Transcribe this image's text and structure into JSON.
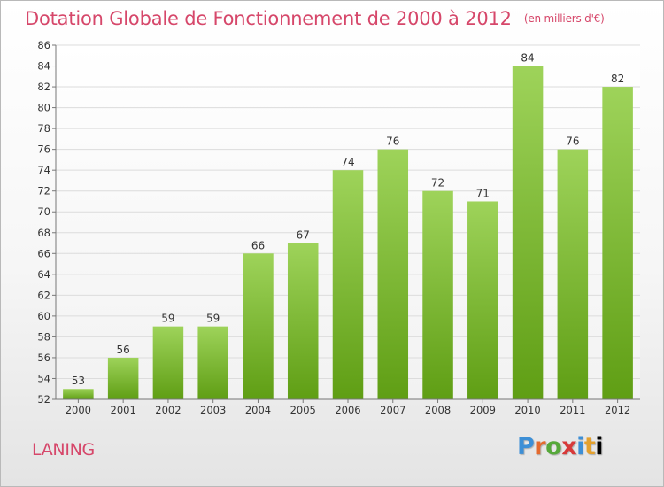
{
  "header": {
    "title": "Dotation Globale de Fonctionnement de 2000 à 2012",
    "unit": "(en milliers d'€)"
  },
  "footer": {
    "commune": "LANING",
    "logo_text": "Proxiti"
  },
  "colors": {
    "title": "#d6476a",
    "bar_top": "#9ed35a",
    "bar_bottom": "#5f9e14",
    "grid": "#dcdcdc",
    "axis": "#777777"
  },
  "chart_data": {
    "type": "bar",
    "title": "Dotation Globale de Fonctionnement de 2000 à 2012",
    "subtitle": "(en milliers d'€)",
    "xlabel": "",
    "ylabel": "",
    "categories": [
      "2000",
      "2001",
      "2002",
      "2003",
      "2004",
      "2005",
      "2006",
      "2007",
      "2008",
      "2009",
      "2010",
      "2011",
      "2012"
    ],
    "values": [
      53,
      56,
      59,
      59,
      66,
      67,
      74,
      76,
      72,
      71,
      84,
      76,
      82
    ],
    "ylim": [
      52,
      86
    ],
    "yticks": [
      52,
      54,
      56,
      58,
      60,
      62,
      64,
      66,
      68,
      70,
      72,
      74,
      76,
      78,
      80,
      82,
      84,
      86
    ],
    "grid": true,
    "data_labels": true,
    "legend": "none"
  }
}
